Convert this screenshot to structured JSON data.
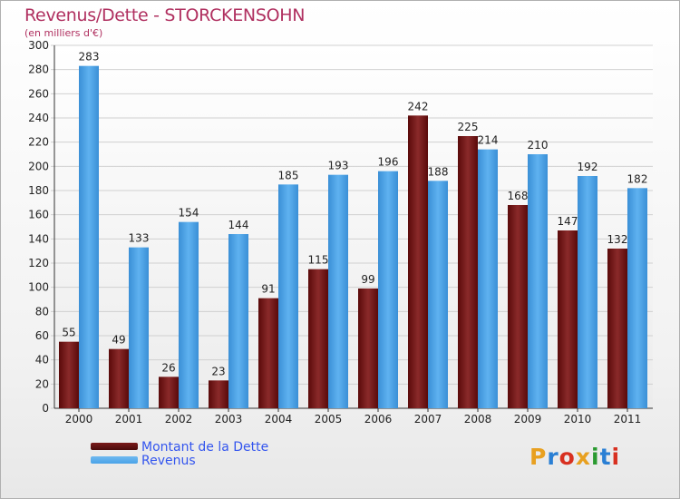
{
  "header": {
    "title": "Revenus/Dette - STORCKENSOHN",
    "subtitle": "(en milliers d'€)"
  },
  "legend": {
    "items": [
      {
        "label": "Montant de la Dette",
        "color": "#7a1a1a"
      },
      {
        "label": "Revenus",
        "color": "#4aa3e8"
      }
    ]
  },
  "logo": {
    "text": "Proxiti",
    "colors": [
      "#e8a020",
      "#2a7fd4",
      "#d83020",
      "#e8a020",
      "#2a9a30",
      "#2a7fd4",
      "#d83020"
    ]
  },
  "chart_data": {
    "type": "bar",
    "title": "Revenus/Dette - STORCKENSOHN",
    "ylabel": "(en milliers d'€)",
    "categories": [
      "2000",
      "2001",
      "2002",
      "2003",
      "2004",
      "2005",
      "2006",
      "2007",
      "2008",
      "2009",
      "2010",
      "2011"
    ],
    "series": [
      {
        "name": "Montant de la Dette",
        "color": "#7a1a1a",
        "values": [
          55,
          49,
          26,
          23,
          91,
          115,
          99,
          242,
          225,
          168,
          147,
          132
        ]
      },
      {
        "name": "Revenus",
        "color": "#4aa3e8",
        "values": [
          283,
          133,
          154,
          144,
          185,
          193,
          196,
          188,
          214,
          210,
          192,
          182
        ]
      }
    ],
    "ylim": [
      0,
      300
    ],
    "yticks": [
      0,
      20,
      40,
      60,
      80,
      100,
      120,
      140,
      160,
      180,
      200,
      220,
      240,
      260,
      280,
      300
    ],
    "grid": true,
    "legend_position": "bottom-left"
  }
}
